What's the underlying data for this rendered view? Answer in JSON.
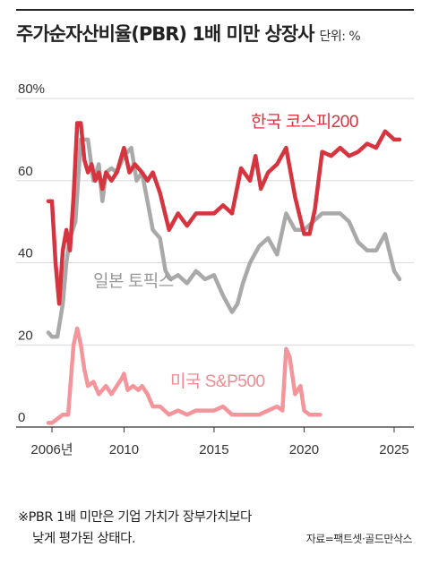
{
  "header": {
    "title": "주가순자산비율(PBR) 1배 미만 상장사",
    "unit": "단위: %"
  },
  "footnote": {
    "line1": "※PBR 1배 미만은 기업 가치가 장부가치보다",
    "line2": "낮게 평가된 상태다."
  },
  "source": "자료=팩트셋·골드만삭스",
  "colors": {
    "kospi": "#d6343e",
    "topix": "#a9a9a9",
    "sp500": "#f4959b",
    "grid": "#d9d9d9",
    "axis": "#333333"
  },
  "chart_data": {
    "type": "line",
    "ylim": [
      0,
      80
    ],
    "xlim": [
      2005.5,
      2026.0
    ],
    "y_ticks": [
      {
        "value": 0,
        "label": "0"
      },
      {
        "value": 20,
        "label": "20"
      },
      {
        "value": 40,
        "label": "40"
      },
      {
        "value": 60,
        "label": "60"
      },
      {
        "value": 80,
        "label": "80%"
      }
    ],
    "x_ticks": [
      {
        "value": 2006,
        "label": "2006년"
      },
      {
        "value": 2010,
        "label": "2010"
      },
      {
        "value": 2015,
        "label": "2015"
      },
      {
        "value": 2020,
        "label": "2020"
      },
      {
        "value": 2025,
        "label": "2025"
      }
    ],
    "grid": "horizontal",
    "legend": "inline labels",
    "series": [
      {
        "key": "kospi",
        "name": "한국 코스피200",
        "x": [
          2005.8,
          2006.0,
          2006.2,
          2006.4,
          2006.6,
          2006.8,
          2007.0,
          2007.2,
          2007.4,
          2007.6,
          2007.8,
          2008.0,
          2008.2,
          2008.4,
          2008.6,
          2008.8,
          2009.0,
          2009.3,
          2009.6,
          2010.0,
          2010.3,
          2010.6,
          2011.0,
          2011.3,
          2011.6,
          2012.0,
          2012.5,
          2013.0,
          2013.5,
          2014.0,
          2014.5,
          2015.0,
          2015.5,
          2016.0,
          2016.5,
          2017.0,
          2017.3,
          2017.6,
          2018.0,
          2018.5,
          2019.0,
          2019.5,
          2020.0,
          2020.3,
          2020.6,
          2021.0,
          2021.5,
          2022.0,
          2022.5,
          2023.0,
          2023.5,
          2024.0,
          2024.5,
          2025.0,
          2025.3
        ],
        "values": [
          55,
          55,
          40,
          30,
          43,
          48,
          43,
          56,
          74,
          74,
          65,
          62,
          64,
          60,
          62,
          58,
          62,
          60,
          62,
          68,
          62,
          64,
          62,
          60,
          62,
          57,
          48,
          52,
          49,
          52,
          52,
          52,
          54,
          52,
          63,
          60,
          66,
          58,
          62,
          64,
          68,
          56,
          47,
          47,
          53,
          67,
          66,
          68,
          66,
          67,
          69,
          68,
          72,
          70,
          70
        ]
      },
      {
        "key": "topix",
        "name": "일본 토픽스",
        "x": [
          2005.8,
          2006.0,
          2006.3,
          2006.6,
          2006.8,
          2007.0,
          2007.3,
          2007.6,
          2008.0,
          2008.3,
          2008.6,
          2008.8,
          2009.0,
          2009.3,
          2009.6,
          2010.0,
          2010.4,
          2010.7,
          2011.0,
          2011.3,
          2011.6,
          2012.0,
          2012.3,
          2012.6,
          2013.0,
          2013.5,
          2014.0,
          2014.5,
          2015.0,
          2015.5,
          2016.0,
          2016.3,
          2016.6,
          2017.0,
          2017.5,
          2018.0,
          2018.5,
          2019.0,
          2019.5,
          2020.0,
          2020.5,
          2021.0,
          2021.5,
          2022.0,
          2022.5,
          2023.0,
          2023.5,
          2024.0,
          2024.5,
          2025.0,
          2025.3
        ],
        "values": [
          23,
          22,
          22,
          30,
          40,
          46,
          50,
          70,
          70,
          60,
          64,
          55,
          62,
          63,
          62,
          66,
          68,
          60,
          62,
          55,
          48,
          46,
          38,
          36,
          37,
          35,
          38,
          36,
          37,
          32,
          28,
          30,
          35,
          40,
          44,
          46,
          42,
          52,
          48,
          48,
          50,
          52,
          52,
          52,
          50,
          45,
          43,
          43,
          47,
          38,
          36
        ]
      },
      {
        "key": "sp500",
        "name": "미국 S&P500",
        "x": [
          2005.8,
          2006.0,
          2006.3,
          2006.6,
          2006.9,
          2007.2,
          2007.4,
          2007.6,
          2007.8,
          2008.0,
          2008.3,
          2008.6,
          2009.0,
          2009.3,
          2009.6,
          2009.9,
          2010.0,
          2010.2,
          2010.5,
          2010.8,
          2011.0,
          2011.3,
          2011.6,
          2012.0,
          2012.5,
          2013.0,
          2013.5,
          2014.0,
          2014.5,
          2015.0,
          2015.5,
          2016.0,
          2016.5,
          2017.0,
          2017.5,
          2018.0,
          2018.5,
          2018.8,
          2019.0,
          2019.2,
          2019.5,
          2019.8,
          2020.0,
          2020.3,
          2020.6,
          2020.9
        ],
        "values": [
          1,
          1,
          2,
          3,
          3,
          20,
          24,
          20,
          14,
          10,
          11,
          8,
          10,
          8,
          10,
          12,
          13,
          9,
          10,
          9,
          10,
          8,
          5,
          5,
          3,
          4,
          3,
          4,
          4,
          4,
          5,
          3,
          3,
          3,
          3,
          4,
          5,
          4,
          19,
          17,
          8,
          10,
          4,
          3,
          3,
          3
        ]
      }
    ]
  }
}
